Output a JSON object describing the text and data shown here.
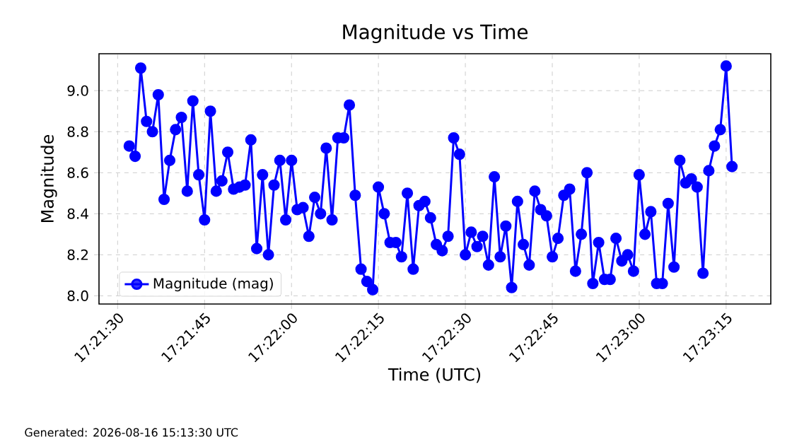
{
  "chart_data": {
    "type": "line",
    "title": "Magnitude vs Time",
    "xlabel": "Time (UTC)",
    "ylabel": "Magnitude",
    "annotations": [
      "Generated: 2026-08-16 15:13:30 UTC"
    ],
    "series": [
      {
        "name": "Magnitude (mag)",
        "color": "#0000ff",
        "x": [
          17.35889,
          17.35917,
          17.35944,
          17.35972,
          17.36,
          17.36028,
          17.36056,
          17.36083,
          17.36111,
          17.36139,
          17.36167,
          17.36194,
          17.36222,
          17.3625,
          17.36278,
          17.36306,
          17.36333,
          17.36361,
          17.36389,
          17.36417,
          17.36444,
          17.36472,
          17.365,
          17.36528,
          17.36556,
          17.36583,
          17.36611,
          17.36639,
          17.36667,
          17.36694,
          17.36722,
          17.3675,
          17.36778,
          17.36806,
          17.36833,
          17.36861,
          17.36889,
          17.36917,
          17.36944,
          17.36972,
          17.37,
          17.37028,
          17.37056,
          17.37083,
          17.37111,
          17.37139,
          17.37167,
          17.37194,
          17.37222,
          17.3725,
          17.37278,
          17.37306,
          17.37333,
          17.37361,
          17.37389,
          17.37417,
          17.37444,
          17.37472,
          17.375,
          17.37528,
          17.37556,
          17.37583,
          17.37611,
          17.37639,
          17.37667,
          17.37694,
          17.37722,
          17.3775,
          17.37778,
          17.37806,
          17.37833,
          17.37861,
          17.37889,
          17.37917,
          17.37944,
          17.37972,
          17.38,
          17.38028,
          17.38056,
          17.38083,
          17.38111,
          17.38139,
          17.38167,
          17.38194,
          17.38222,
          17.3825,
          17.38278,
          17.38306,
          17.38333,
          17.38361,
          17.38389,
          17.38417,
          17.38444,
          17.38472,
          17.385,
          17.38528,
          17.38556,
          17.38583,
          17.38611,
          17.38639,
          17.38667,
          17.38694,
          17.38722,
          17.3875,
          17.38778
        ],
        "values": [
          8.73,
          8.68,
          9.11,
          8.85,
          8.8,
          8.98,
          8.47,
          8.66,
          8.81,
          8.87,
          8.51,
          8.95,
          8.59,
          8.37,
          8.9,
          8.51,
          8.56,
          8.7,
          8.52,
          8.53,
          8.54,
          8.76,
          8.23,
          8.59,
          8.2,
          8.54,
          8.66,
          8.37,
          8.66,
          8.42,
          8.43,
          8.29,
          8.48,
          8.4,
          8.72,
          8.37,
          8.77,
          8.77,
          8.93,
          8.49,
          8.13,
          8.07,
          8.03,
          8.53,
          8.4,
          8.26,
          8.26,
          8.19,
          8.5,
          8.13,
          8.44,
          8.46,
          8.38,
          8.25,
          8.22,
          8.29,
          8.77,
          8.69,
          8.2,
          8.31,
          8.24,
          8.29,
          8.15,
          8.58,
          8.19,
          8.34,
          8.04,
          8.46,
          8.25,
          8.15,
          8.51,
          8.42,
          8.39,
          8.19,
          8.28,
          8.49,
          8.52,
          8.12,
          8.3,
          8.6,
          8.06,
          8.26,
          8.08,
          8.08,
          8.28,
          8.17,
          8.2,
          8.12,
          8.59,
          8.3,
          8.41,
          8.06,
          8.06,
          8.45,
          8.14,
          8.66,
          8.55,
          8.57,
          8.53,
          8.11,
          8.61,
          8.73,
          8.81,
          9.12,
          8.63
        ]
      }
    ],
    "xlim": [
      17.35744,
      17.38964
    ],
    "ylim": [
      7.96,
      9.18
    ],
    "xticks": [
      {
        "value": 17.358333,
        "label": "17:21:30"
      },
      {
        "value": 17.3625,
        "label": "17:21:45"
      },
      {
        "value": 17.366667,
        "label": "17:22:00"
      },
      {
        "value": 17.370833,
        "label": "17:22:15"
      },
      {
        "value": 17.375,
        "label": "17:22:30"
      },
      {
        "value": 17.379167,
        "label": "17:22:45"
      },
      {
        "value": 17.383333,
        "label": "17:23:00"
      },
      {
        "value": 17.3875,
        "label": "17:23:15"
      }
    ],
    "yticks": [
      {
        "value": 8.0,
        "label": "8.0"
      },
      {
        "value": 8.2,
        "label": "8.2"
      },
      {
        "value": 8.4,
        "label": "8.4"
      },
      {
        "value": 8.6,
        "label": "8.6"
      },
      {
        "value": 8.8,
        "label": "8.8"
      },
      {
        "value": 9.0,
        "label": "9.0"
      }
    ],
    "grid": true,
    "legend": "bottom left",
    "marker": "circle",
    "line_style": "solid"
  }
}
